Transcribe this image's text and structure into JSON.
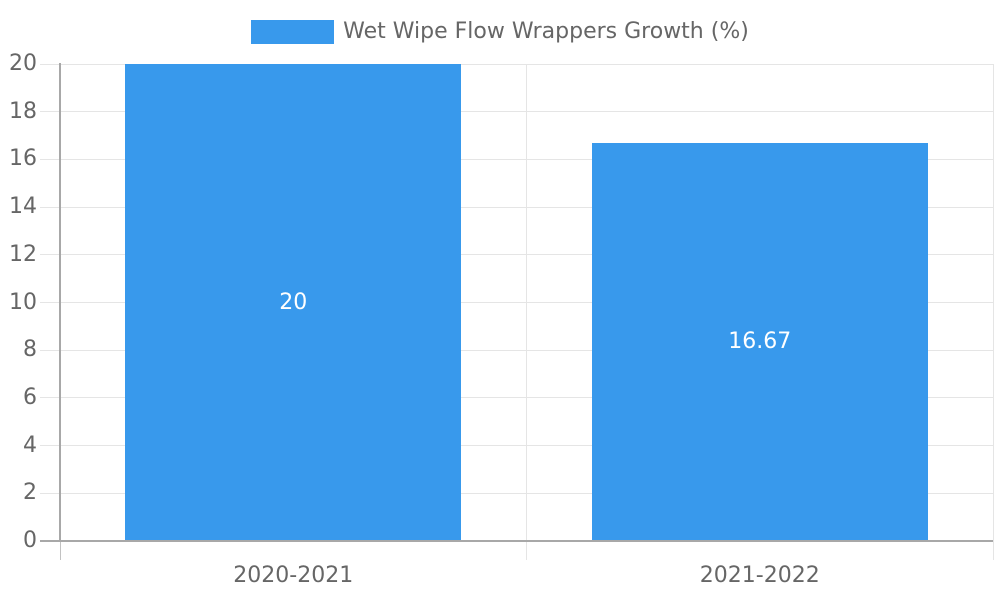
{
  "chart_data": {
    "type": "bar",
    "title": "",
    "legend": "Wet Wipe Flow Wrappers Growth (%)",
    "legend_position": "top",
    "categories": [
      "2020-2021",
      "2021-2022"
    ],
    "values": [
      20,
      16.67
    ],
    "value_labels": [
      "20",
      "16.67"
    ],
    "xlabel": "",
    "ylabel": "",
    "ylim": [
      0,
      20
    ],
    "ytick_step": 2,
    "ytick_labels": [
      "0",
      "2",
      "4",
      "6",
      "8",
      "10",
      "12",
      "14",
      "16",
      "18",
      "20"
    ],
    "grid": true,
    "bar_color": "#3899ec",
    "value_label_color": "#ffffff",
    "text_color": "#666666",
    "grid_color": "#e5e5e5",
    "axis_color": "#a8a8a8",
    "tick_color": "#c2c2c2"
  }
}
